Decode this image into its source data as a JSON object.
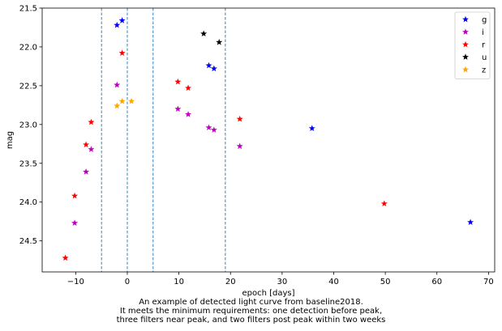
{
  "chart_data": {
    "type": "scatter",
    "xlabel": "epoch [days]",
    "ylabel": "mag",
    "xlim": [
      -16.5,
      71.2
    ],
    "ylim": [
      24.9,
      21.5
    ],
    "y_inverted": true,
    "grid": false,
    "legend_position": "top-right",
    "xticks": [
      -10,
      0,
      10,
      20,
      30,
      40,
      50,
      60,
      70
    ],
    "yticks": [
      21.5,
      22.0,
      22.5,
      23.0,
      23.5,
      24.0,
      24.5
    ],
    "ytick_labels": [
      "21.5",
      "22.0",
      "22.5",
      "23.0",
      "23.5",
      "24.0",
      "24.5"
    ],
    "vlines": [
      -5,
      0,
      5,
      19
    ],
    "vline_color": "#1f77b4",
    "series": [
      {
        "name": "g",
        "color": "#0000ff",
        "x": [
          -2.0,
          -1.0,
          15.8,
          16.8,
          35.8,
          66.5
        ],
        "y": [
          21.72,
          21.66,
          22.24,
          22.28,
          23.05,
          24.26
        ]
      },
      {
        "name": "i",
        "color": "#bf00bf",
        "x": [
          -10.2,
          -8.0,
          -7.0,
          -2.0,
          9.8,
          11.8,
          15.8,
          16.8,
          21.8
        ],
        "y": [
          24.27,
          23.61,
          23.32,
          22.49,
          22.8,
          22.87,
          23.04,
          23.07,
          23.28
        ]
      },
      {
        "name": "r",
        "color": "#ff0000",
        "x": [
          -12.0,
          -10.2,
          -8.0,
          -7.0,
          -1.0,
          9.8,
          11.8,
          21.8,
          49.8
        ],
        "y": [
          24.72,
          23.92,
          23.26,
          22.97,
          22.08,
          22.45,
          22.53,
          22.93,
          24.02
        ]
      },
      {
        "name": "u",
        "color": "#000000",
        "x": [
          14.8,
          17.8
        ],
        "y": [
          21.83,
          21.94
        ]
      },
      {
        "name": "z",
        "color": "#ffa500",
        "x": [
          -2.0,
          -1.0,
          0.8
        ],
        "y": [
          22.76,
          22.7,
          22.7
        ]
      }
    ]
  },
  "caption": {
    "line1": "An example of detected light curve from baseline2018.",
    "line2": "It meets the minimum requirements: one detection before peak,",
    "line3": "three filters near peak, and two filters post peak within two weeks"
  }
}
